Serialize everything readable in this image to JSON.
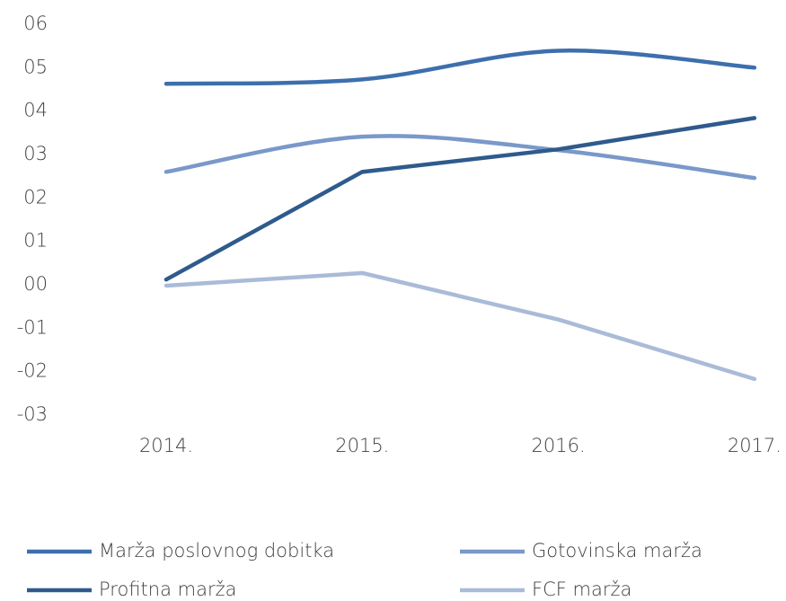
{
  "chart_data": {
    "type": "line",
    "categories": [
      "2014.",
      "2015.",
      "2016.",
      "2017."
    ],
    "series": [
      {
        "name": "Marža poslovnog dobitka",
        "color": "#3d6fad",
        "smooth": true,
        "values": [
          4.63,
          4.73,
          5.39,
          5.0
        ]
      },
      {
        "name": "Gotovinska marža",
        "color": "#7a98c9",
        "smooth": true,
        "values": [
          2.6,
          3.41,
          3.1,
          2.46
        ]
      },
      {
        "name": "Profitna marža",
        "color": "#2f5a8c",
        "smooth": false,
        "values": [
          0.12,
          2.6,
          3.12,
          3.84
        ]
      },
      {
        "name": "FCF marža",
        "color": "#a9bbd8",
        "smooth": false,
        "values": [
          -0.02,
          0.27,
          -0.8,
          -2.17
        ]
      }
    ],
    "ylim": [
      -3,
      6
    ],
    "yticks": [
      {
        "value": 6,
        "label": "06"
      },
      {
        "value": 5,
        "label": "05"
      },
      {
        "value": 4,
        "label": "04"
      },
      {
        "value": 3,
        "label": "03"
      },
      {
        "value": 2,
        "label": "02"
      },
      {
        "value": 1,
        "label": "01"
      },
      {
        "value": 0,
        "label": "00"
      },
      {
        "value": -1,
        "label": "-01"
      },
      {
        "value": -2,
        "label": "-02"
      },
      {
        "value": -3,
        "label": "-03"
      }
    ],
    "grid": false,
    "legend": "bottom"
  }
}
